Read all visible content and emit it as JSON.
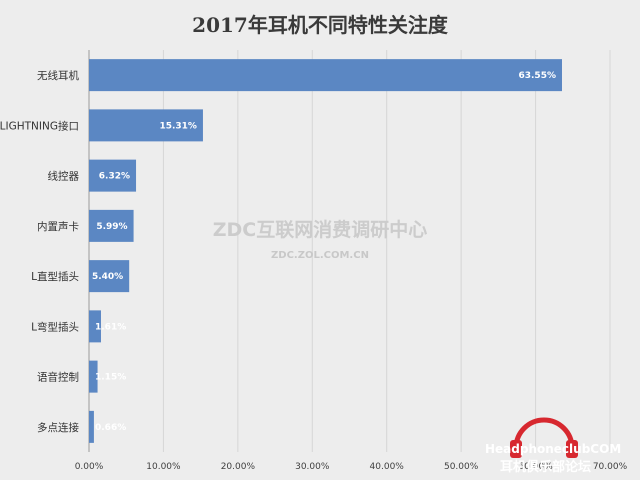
{
  "chart_data": {
    "type": "bar",
    "orientation": "horizontal",
    "title": "2017年耳机不同特性关注度",
    "categories": [
      "无线耳机",
      "LIGHTNING接口",
      "线控器",
      "内置声卡",
      "L直型插头",
      "L弯型插头",
      "语音控制",
      "多点连接"
    ],
    "values": [
      63.55,
      15.31,
      6.32,
      5.99,
      5.4,
      1.61,
      1.15,
      0.66
    ],
    "value_labels": [
      "63.55%",
      "15.31%",
      "6.32%",
      "5.99%",
      "5.40%",
      "1.61%",
      "1.15%",
      "0.66%"
    ],
    "x_ticks": [
      0,
      10,
      20,
      30,
      40,
      50,
      60,
      70
    ],
    "x_tick_labels": [
      "0.00%",
      "10.00%",
      "20.00%",
      "30.00%",
      "40.00%",
      "50.00%",
      "60.00%",
      "70.00%"
    ],
    "xlim": [
      0,
      70
    ],
    "xlabel": "",
    "ylabel": "",
    "grid": true,
    "bar_color": "#5b87c3"
  },
  "watermark": {
    "main": "ZDC互联网消费调研中心",
    "sub": "ZDC.ZOL.COM.CN"
  },
  "logo": {
    "line1": "HeadphoneclubCOM",
    "line2": "耳机俱乐部论坛",
    "accent_color": "#d7282f"
  },
  "colors": {
    "background": "#ededed",
    "bar": "#5b87c3"
  }
}
